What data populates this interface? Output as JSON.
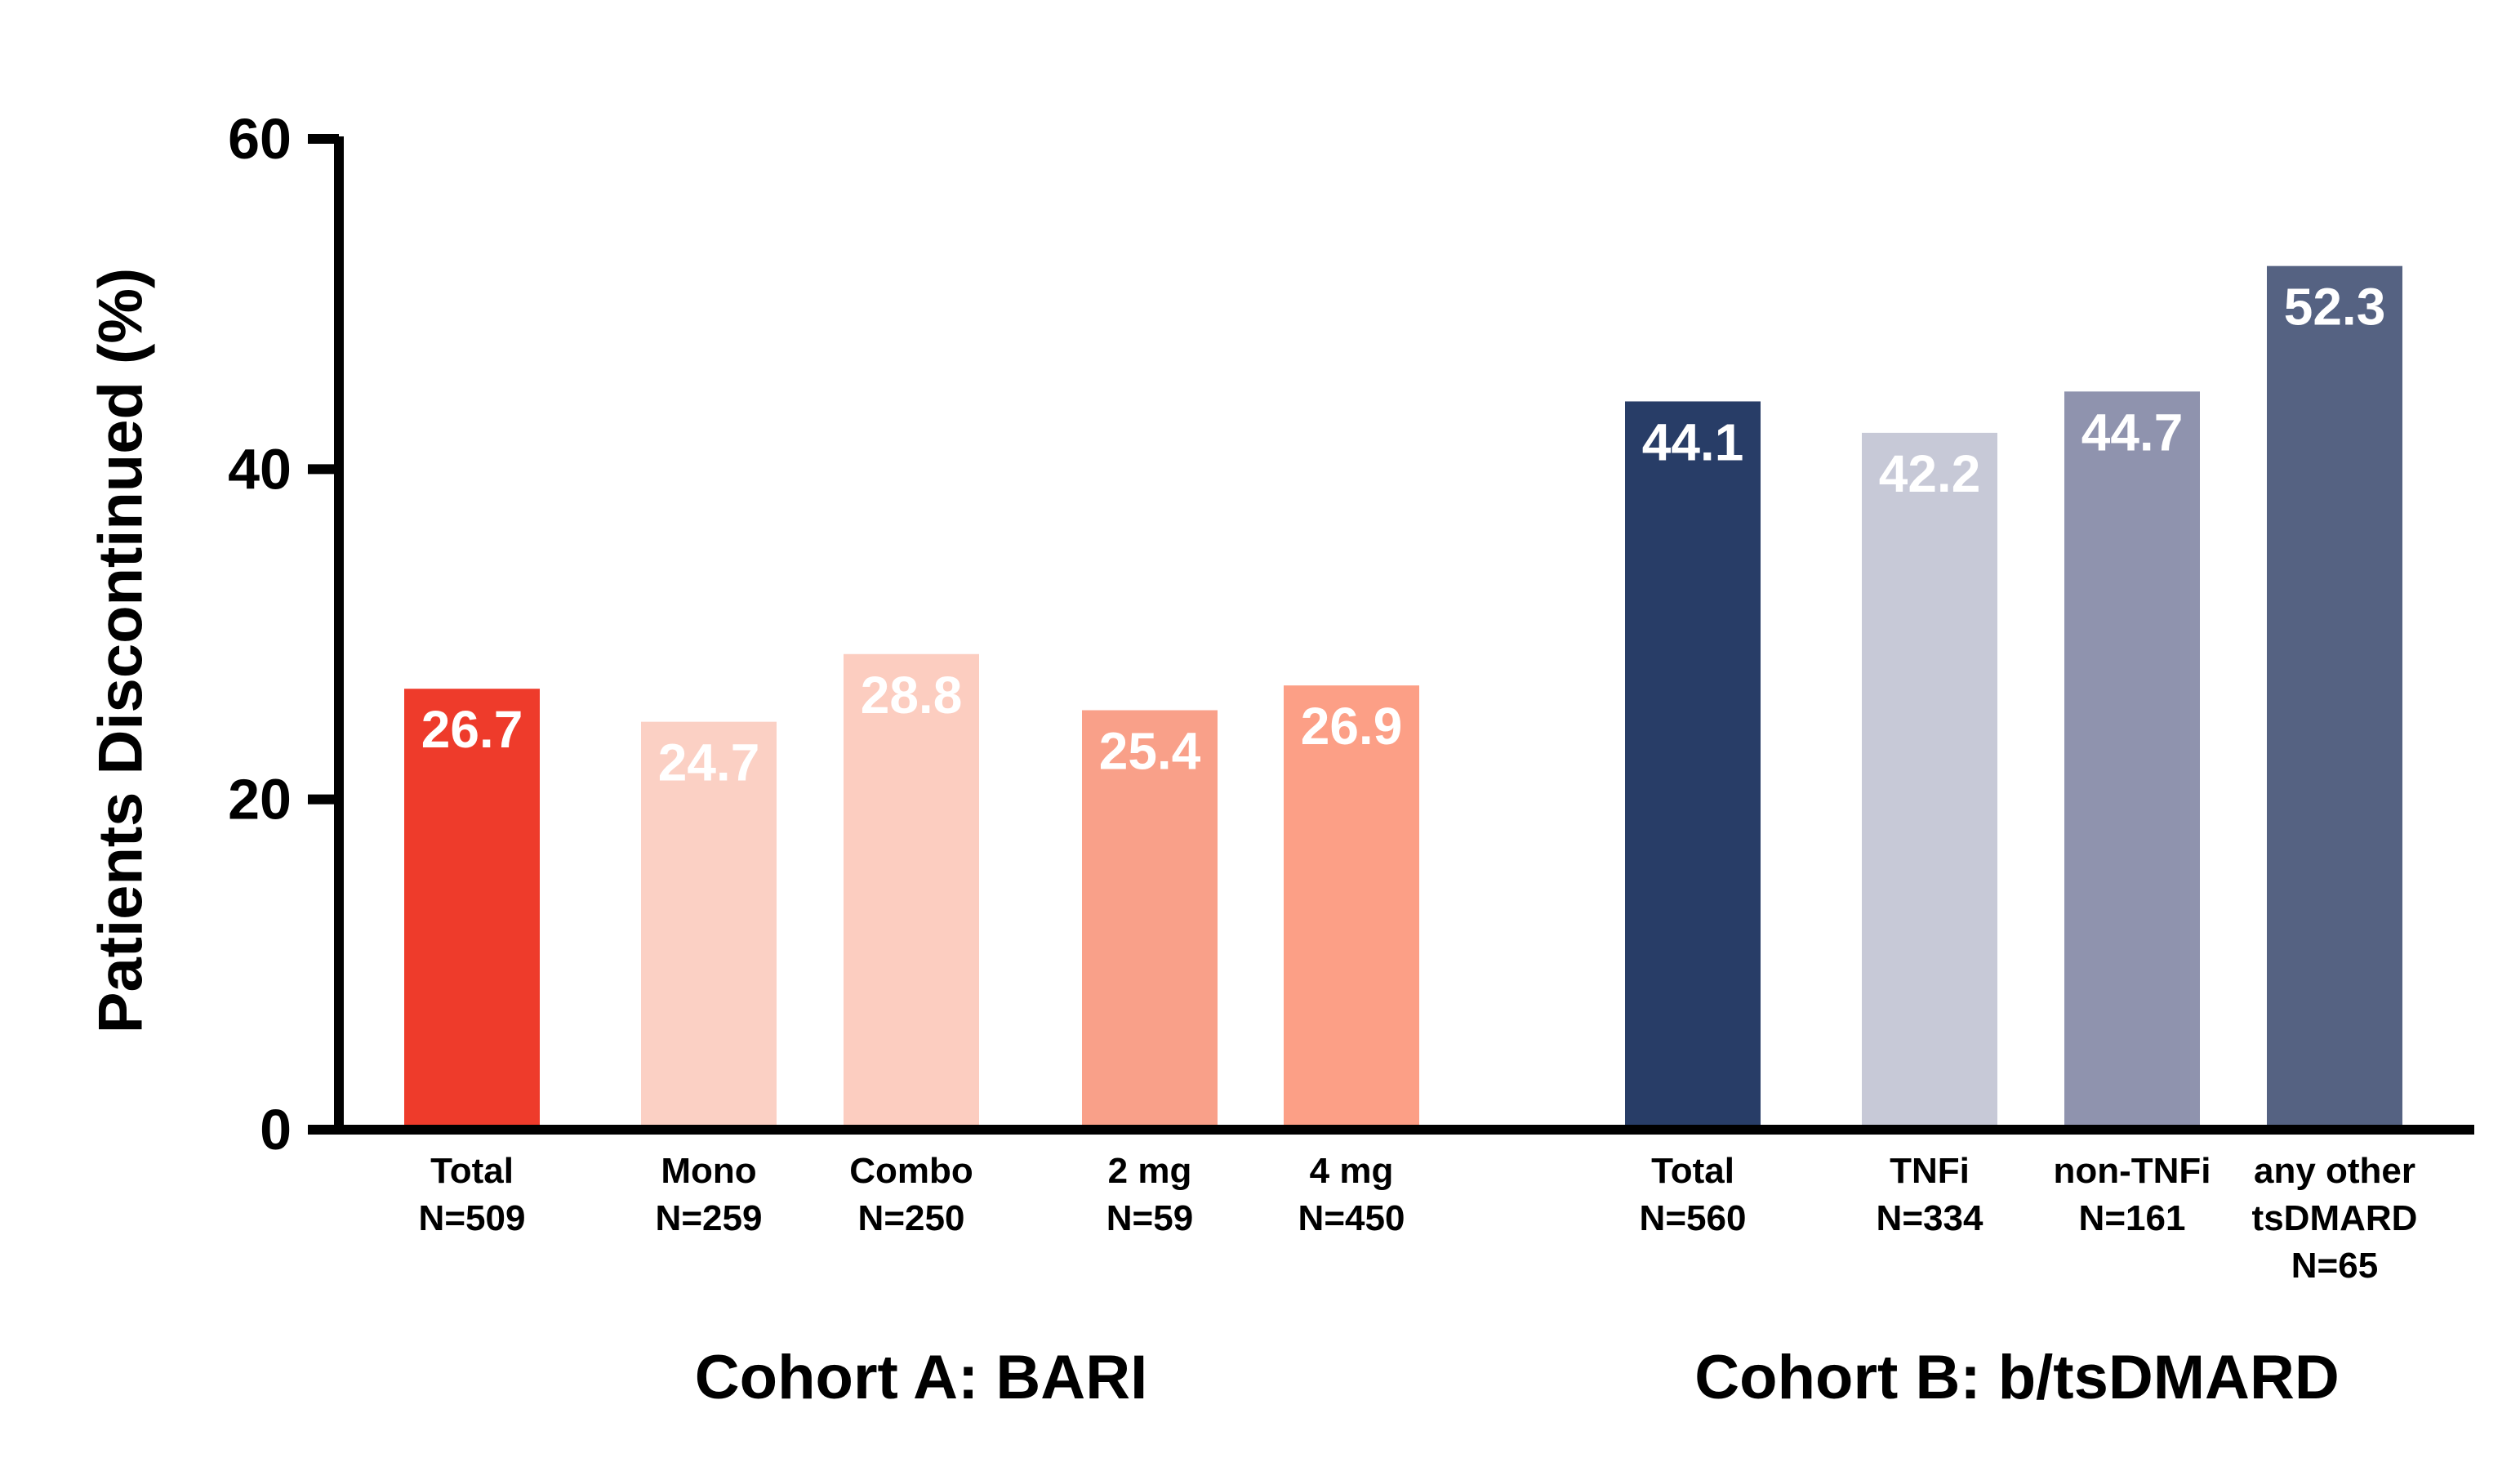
{
  "chart_data": {
    "type": "bar",
    "ylabel": "Patients Discontinued (%)",
    "xlabel": "",
    "ylim": [
      0,
      60
    ],
    "yticks": [
      0,
      20,
      40,
      60
    ],
    "grid": false,
    "groups": [
      {
        "label": "Cohort A: BARI",
        "bars": [
          {
            "label_lines": [
              "Total",
              "N=509"
            ],
            "value": 26.7,
            "value_label": "26.7",
            "color": "#ee3b2b"
          },
          {
            "label_lines": [
              "Mono",
              "N=259"
            ],
            "value": 24.7,
            "value_label": "24.7",
            "color": "#fbd0c4"
          },
          {
            "label_lines": [
              "Combo",
              "N=250"
            ],
            "value": 28.8,
            "value_label": "28.8",
            "color": "#fccdc0"
          },
          {
            "label_lines": [
              "2 mg",
              "N=59"
            ],
            "value": 25.4,
            "value_label": "25.4",
            "color": "#f9a089"
          },
          {
            "label_lines": [
              "4 mg",
              "N=450"
            ],
            "value": 26.9,
            "value_label": "26.9",
            "color": "#fc9f86"
          }
        ]
      },
      {
        "label": "Cohort B: b/tsDMARD",
        "bars": [
          {
            "label_lines": [
              "Total",
              "N=560"
            ],
            "value": 44.1,
            "value_label": "44.1",
            "color": "#283d67"
          },
          {
            "label_lines": [
              "TNFi",
              "N=334"
            ],
            "value": 42.2,
            "value_label": "42.2",
            "color": "#c7c9d7"
          },
          {
            "label_lines": [
              "non-TNFi",
              "N=161"
            ],
            "value": 44.7,
            "value_label": "44.7",
            "color": "#8f93ae"
          },
          {
            "label_lines": [
              "any other",
              "tsDMARD",
              "N=65"
            ],
            "value": 52.3,
            "value_label": "52.3",
            "color": "#556282"
          }
        ]
      }
    ],
    "colors": {
      "axis": "#000000",
      "value_text": "#ffffff"
    }
  }
}
